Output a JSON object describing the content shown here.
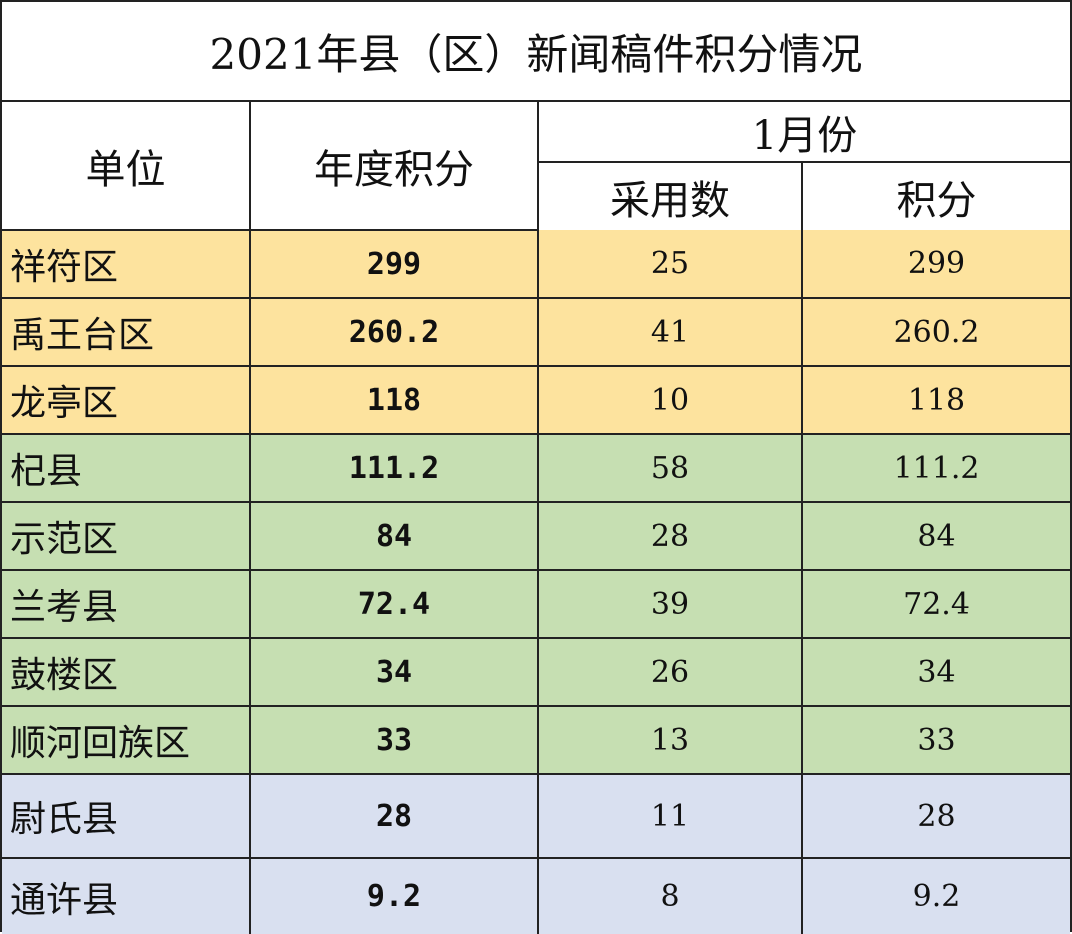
{
  "title": "2021年县（区）新闻稿件积分情况",
  "headers": {
    "unit": "单位",
    "annual_score": "年度积分",
    "month": "1月份",
    "adopted": "采用数",
    "score": "积分"
  },
  "colors": {
    "yellow": "#fde39e",
    "green": "#c6dfb2",
    "blue": "#d9e0f0"
  },
  "chart_data": {
    "type": "table",
    "title": "2021年县（区）新闻稿件积分情况",
    "columns": [
      "单位",
      "年度积分",
      "1月份 采用数",
      "1月份 积分"
    ],
    "rows": [
      {
        "unit": "祥符区",
        "annual": "299",
        "adopted": "25",
        "score": "299",
        "group": "yellow"
      },
      {
        "unit": "禹王台区",
        "annual": "260.2",
        "adopted": "41",
        "score": "260.2",
        "group": "yellow"
      },
      {
        "unit": "龙亭区",
        "annual": "118",
        "adopted": "10",
        "score": "118",
        "group": "yellow"
      },
      {
        "unit": "杞县",
        "annual": "111.2",
        "adopted": "58",
        "score": "111.2",
        "group": "green"
      },
      {
        "unit": "示范区",
        "annual": "84",
        "adopted": "28",
        "score": "84",
        "group": "green"
      },
      {
        "unit": "兰考县",
        "annual": "72.4",
        "adopted": "39",
        "score": "72.4",
        "group": "green"
      },
      {
        "unit": "鼓楼区",
        "annual": "34",
        "adopted": "26",
        "score": "34",
        "group": "green"
      },
      {
        "unit": "顺河回族区",
        "annual": "33",
        "adopted": "13",
        "score": "33",
        "group": "green"
      },
      {
        "unit": "尉氏县",
        "annual": "28",
        "adopted": "11",
        "score": "28",
        "group": "blue"
      },
      {
        "unit": "通许县",
        "annual": "9.2",
        "adopted": "8",
        "score": "9.2",
        "group": "blue"
      }
    ]
  }
}
